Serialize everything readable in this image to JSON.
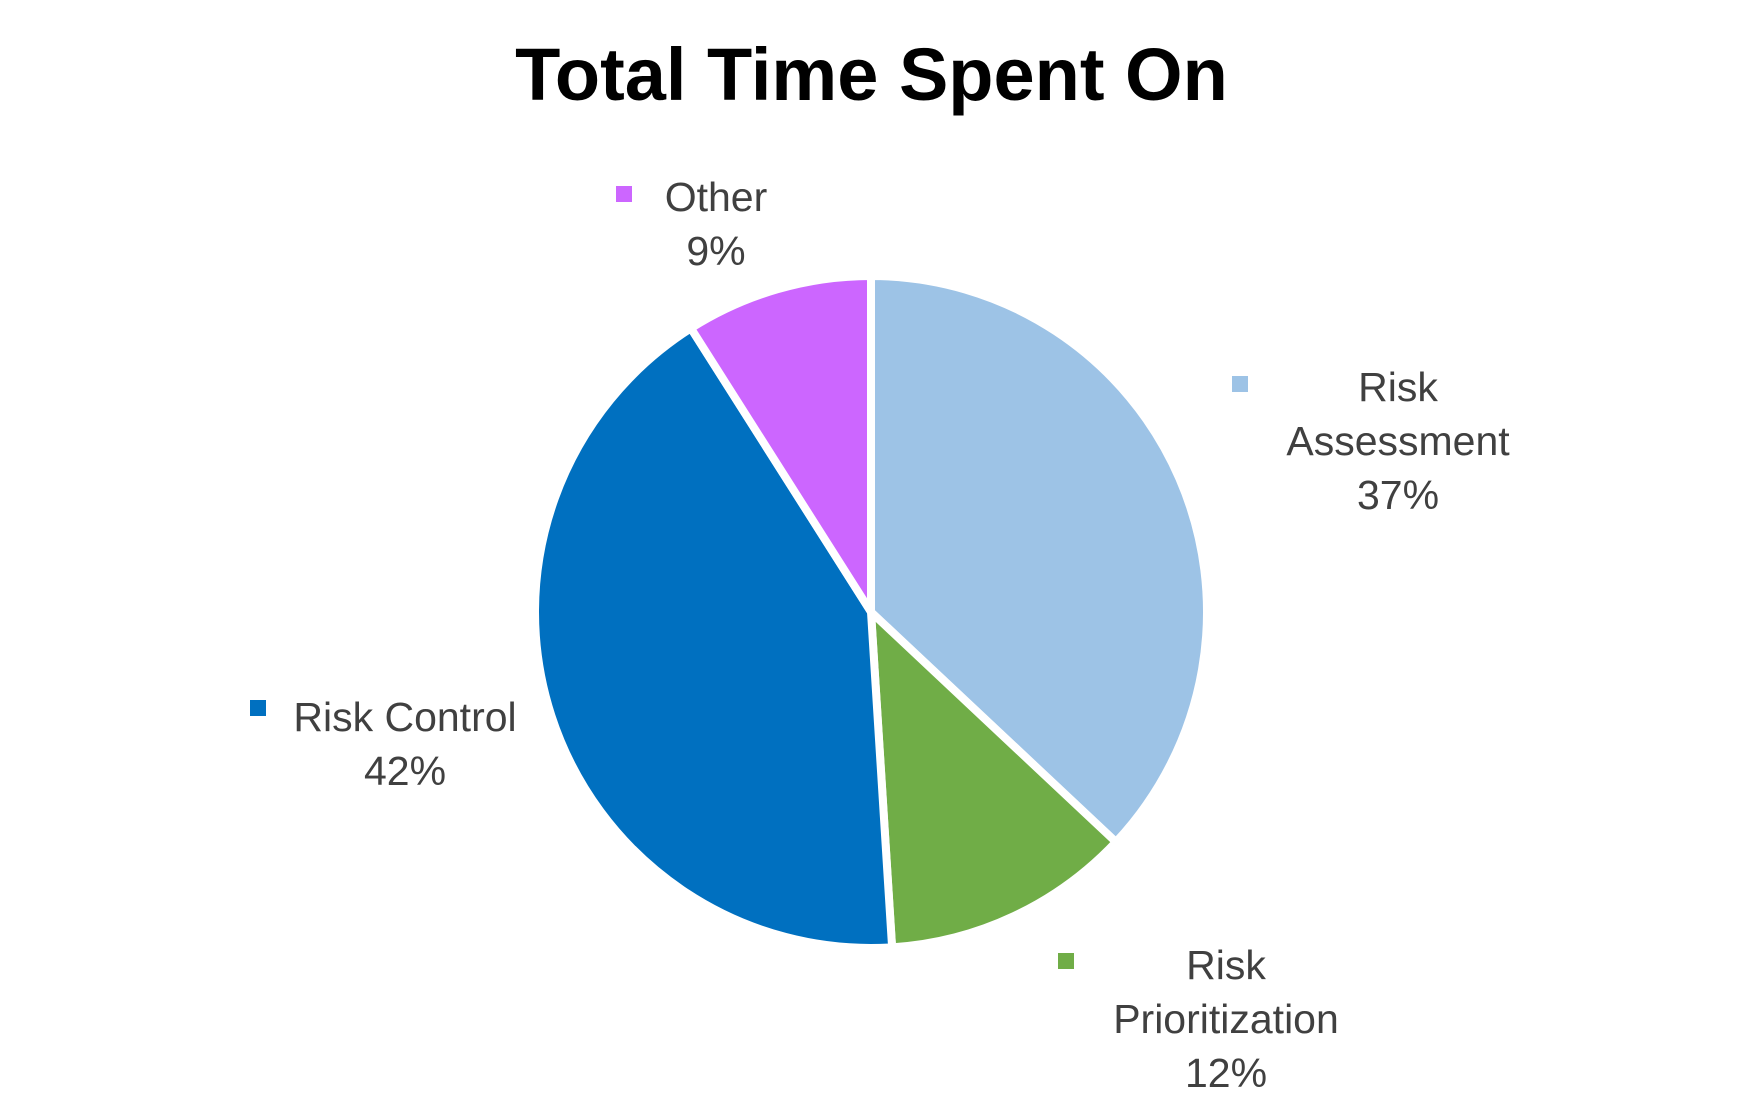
{
  "chart_data": {
    "type": "pie",
    "title": "Total Time Spent On",
    "slices": [
      {
        "label": "Risk Assessment",
        "label_lines": [
          "Risk",
          "Assessment"
        ],
        "value": 37,
        "value_text": "37%",
        "color": "#9DC3E6"
      },
      {
        "label": "Risk Prioritization",
        "label_lines": [
          "Risk",
          "Prioritization"
        ],
        "value": 12,
        "value_text": "12%",
        "color": "#70AD47"
      },
      {
        "label": "Risk Control",
        "label_lines": [
          "Risk Control"
        ],
        "value": 42,
        "value_text": "42%",
        "color": "#0070C0"
      },
      {
        "label": "Other",
        "label_lines": [
          "Other"
        ],
        "value": 9,
        "value_text": "9%",
        "color": "#CC66FF"
      }
    ],
    "start_angle_deg": 0,
    "direction": "clockwise",
    "legend": "data-labels-with-markers"
  }
}
